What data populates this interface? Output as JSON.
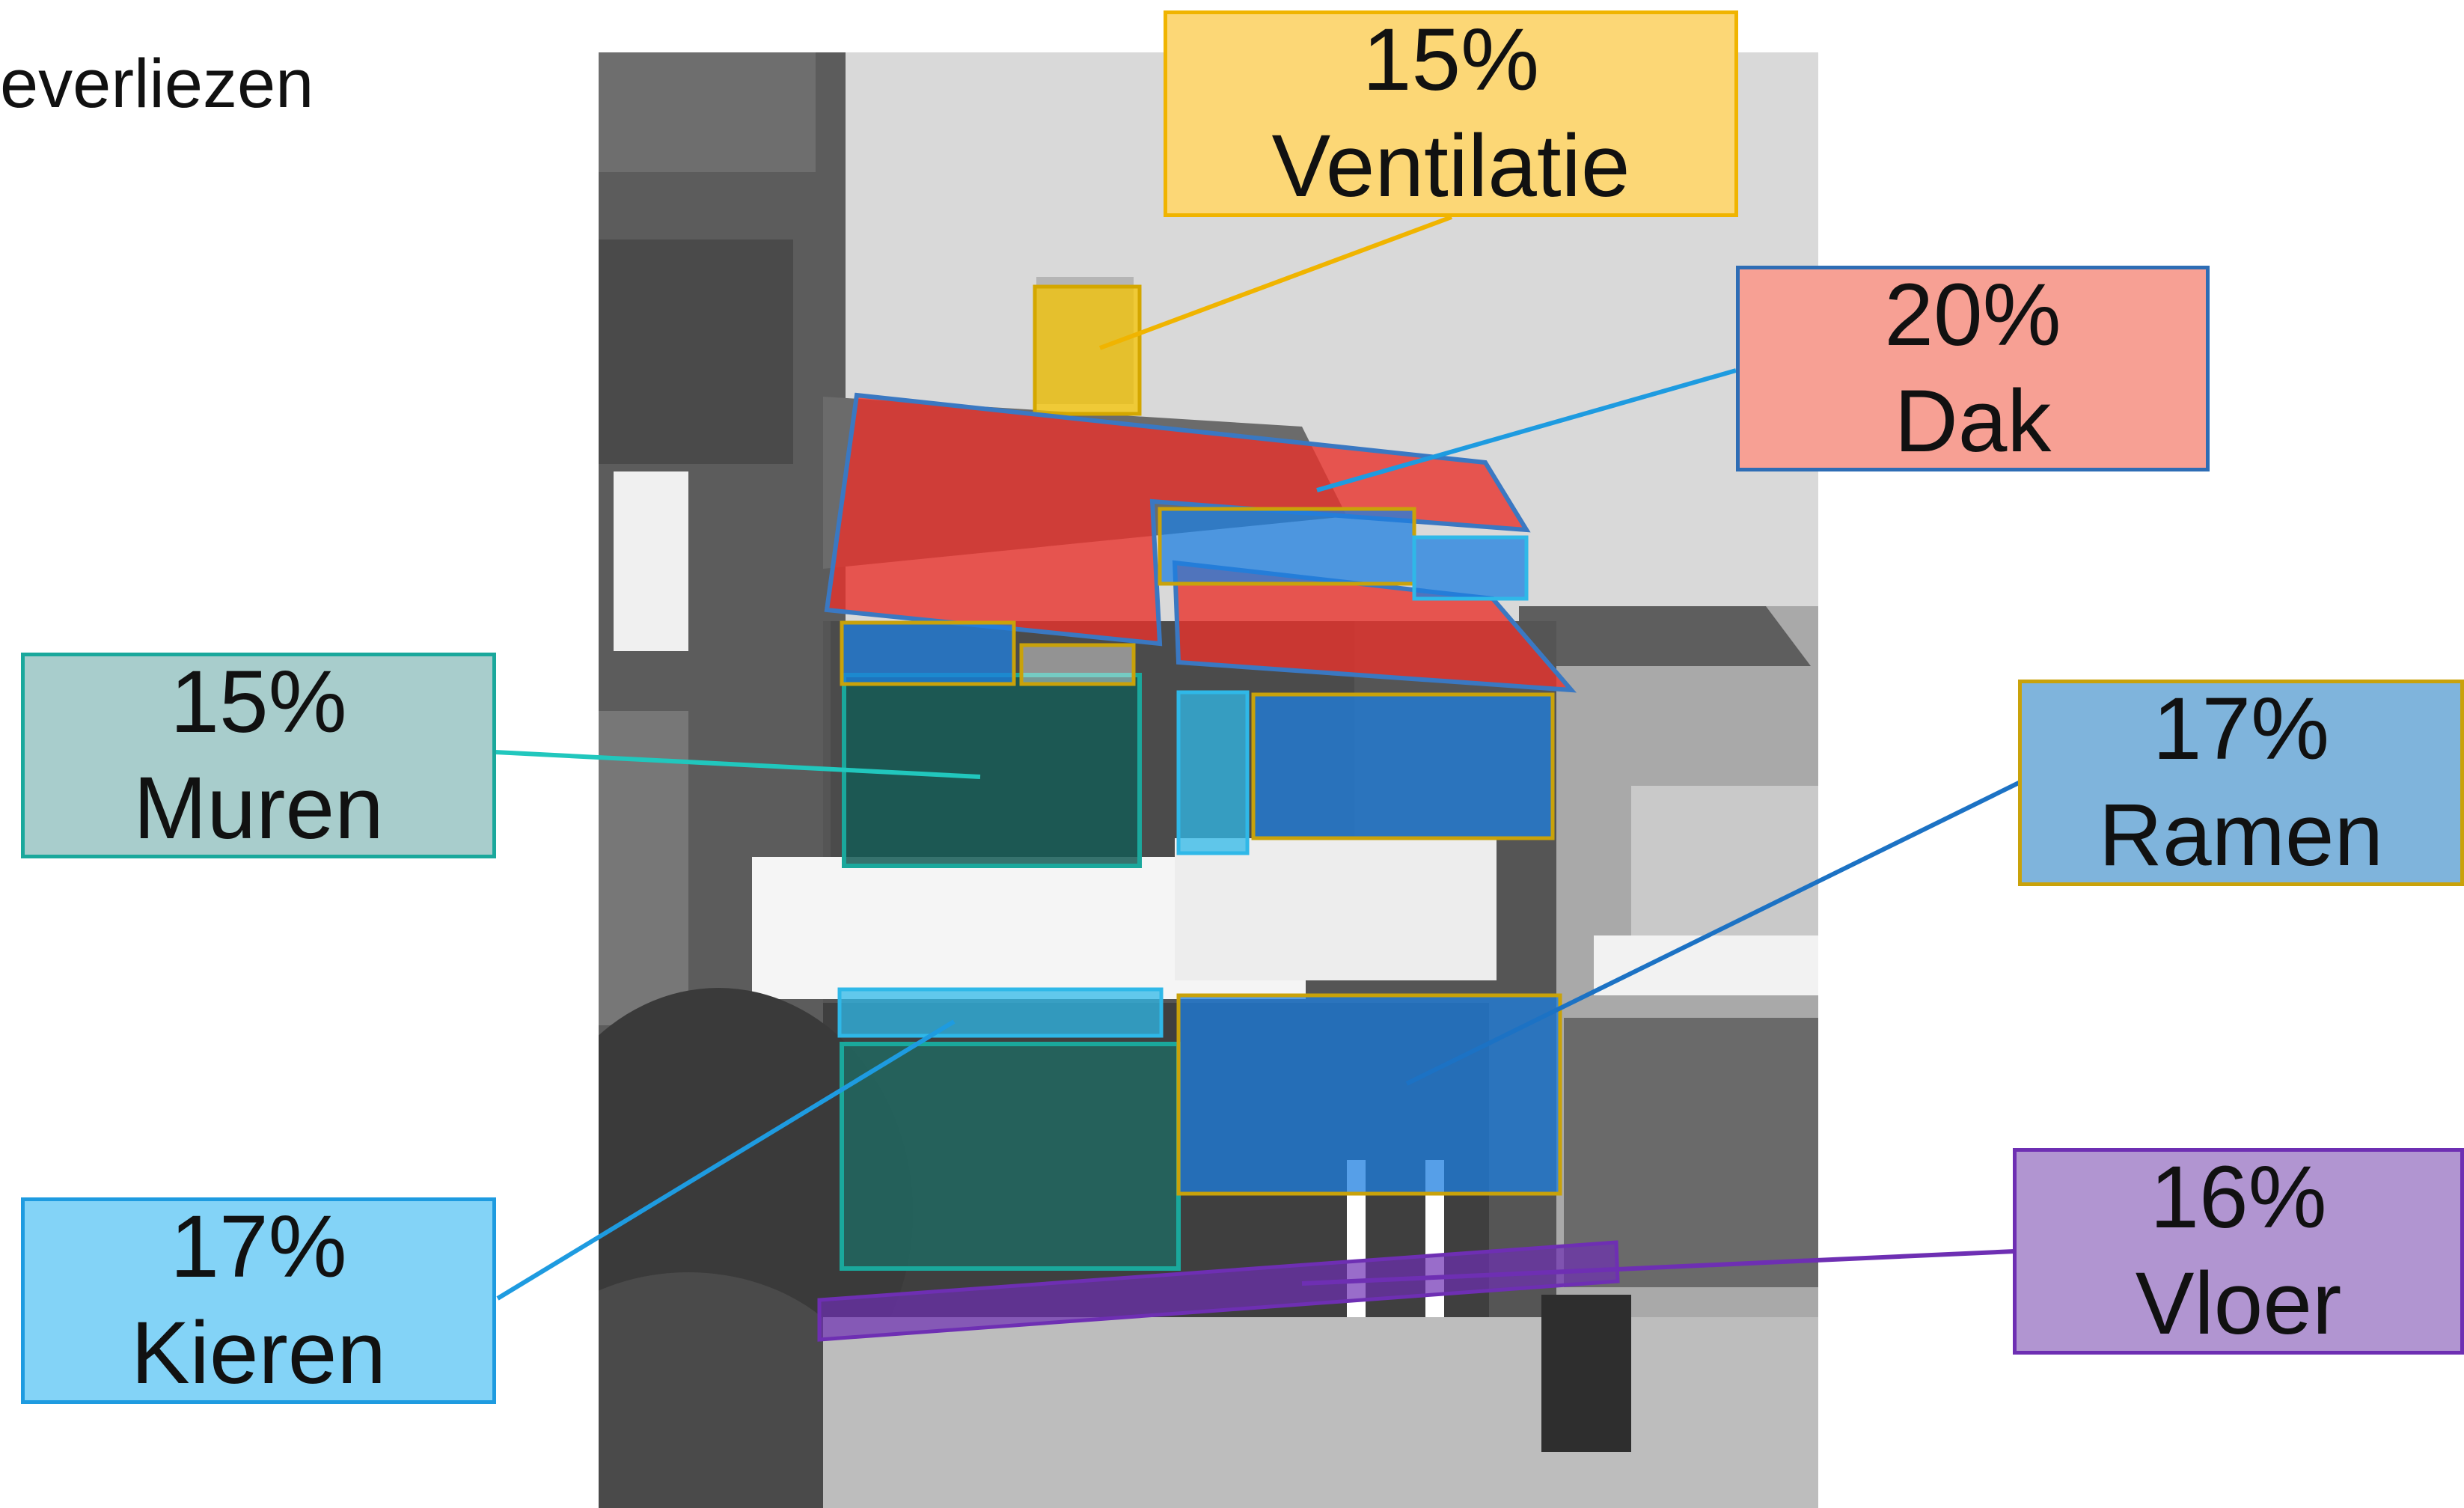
{
  "heading": "everliezen",
  "colors": {
    "ventilation": "#fcd776",
    "roof": "#f7a094",
    "walls": "#a8cdcc",
    "windows": "#7fb4dc",
    "gaps": "#83d3f7",
    "floor": "#b195d1"
  },
  "labels": {
    "ventilation": {
      "percent": "15%",
      "name": "Ventilatie"
    },
    "roof": {
      "percent": "20%",
      "name": "Dak"
    },
    "walls": {
      "percent": "15%",
      "name": "Muren"
    },
    "windows": {
      "percent": "17%",
      "name": "Ramen"
    },
    "gaps": {
      "percent": "17%",
      "name": "Kieren"
    },
    "floor": {
      "percent": "16%",
      "name": "Vloer"
    }
  }
}
